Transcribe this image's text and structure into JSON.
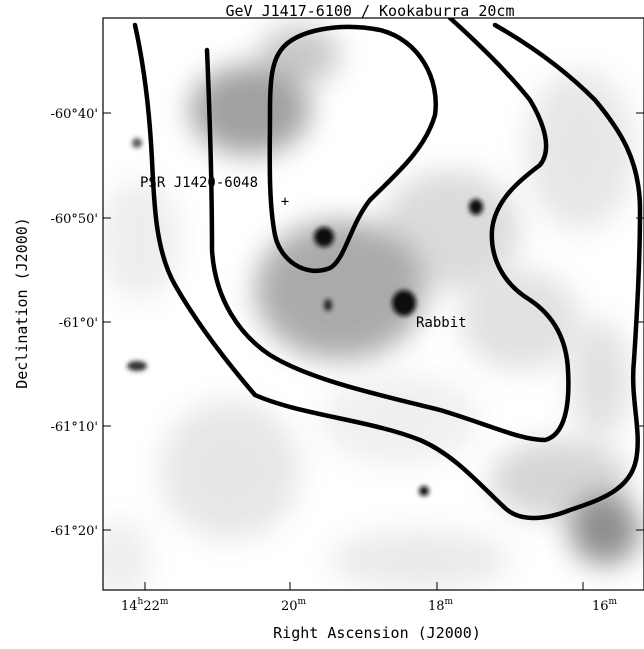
{
  "figure": {
    "title": "GeV J1417-6100 / Kookaburra 20cm",
    "xlabel": "Right Ascension (J2000)",
    "ylabel": "Declination (J2000)"
  },
  "axes": {
    "x_ticks": [
      {
        "label_h": "14",
        "sup_h": "h",
        "label_m": "22",
        "sup_m": "m"
      },
      {
        "label": "20",
        "sup": "m"
      },
      {
        "label": "18",
        "sup": "m"
      },
      {
        "label": "16",
        "sup": "m"
      }
    ],
    "y_ticks": [
      "-60°40'",
      "-60°50'",
      "-61°0'",
      "-61°10'",
      "-61°20'"
    ]
  },
  "annotations": {
    "pulsar_label": "PSR J1420-6048",
    "rabbit_label": "Rabbit",
    "pulsar_marker": "+"
  },
  "colors": {
    "background": "#ffffff",
    "contour": "#000000",
    "emission_dark": "#1a1a1a",
    "emission_mid": "#6e6e6e",
    "emission_light": "#c8c8c8"
  }
}
